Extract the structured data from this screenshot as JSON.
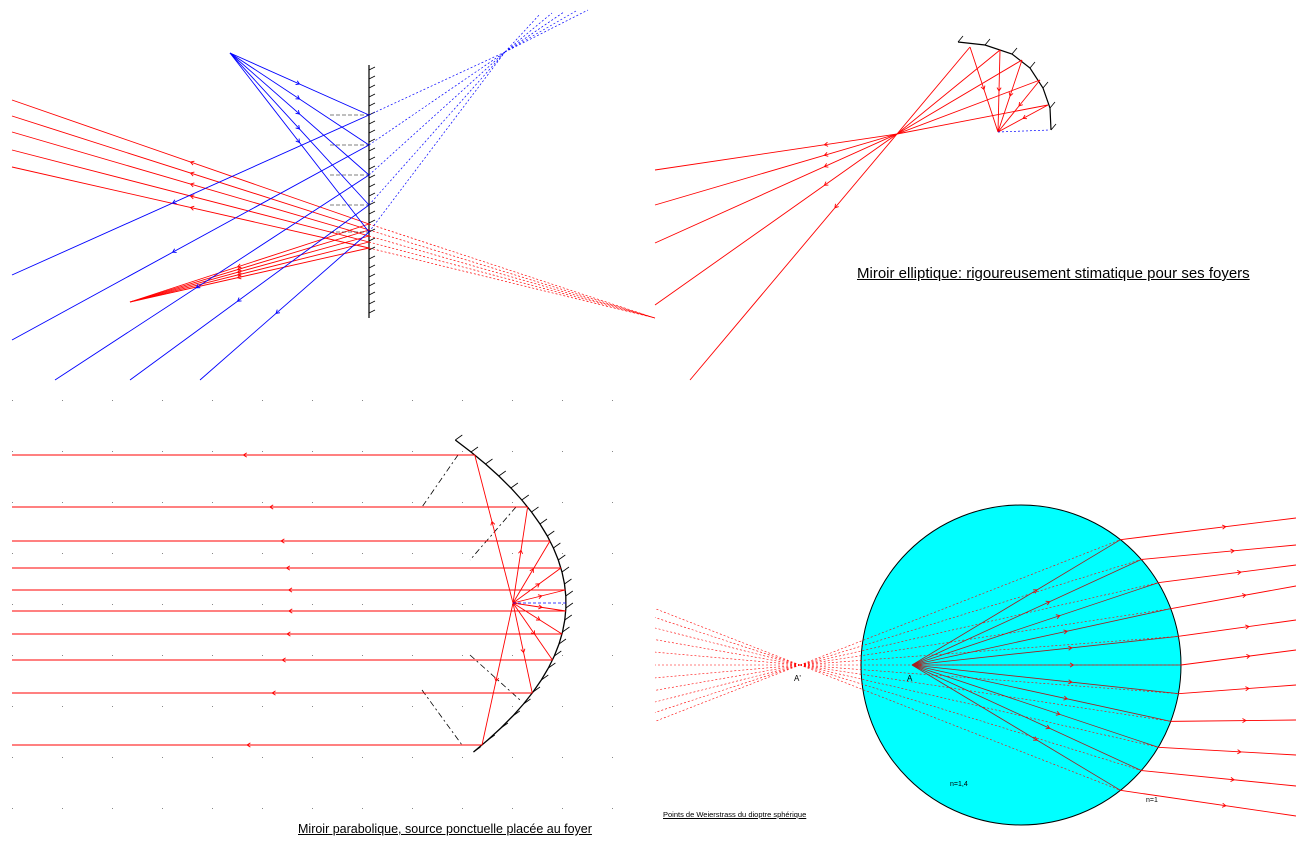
{
  "diagrams": {
    "plane_mirror": {
      "ray_color": "#ff0000",
      "second_ray_color": "#0000ff"
    },
    "elliptic_mirror": {
      "caption": "Miroir elliptique: rigoureusement stimatique pour ses foyers",
      "ray_color": "#ff0000"
    },
    "parabolic_mirror": {
      "caption": "Miroir parabolique, source ponctuelle placée au foyer",
      "ray_color": "#ff0000"
    },
    "weierstrass": {
      "caption": "Points de Weierstrass du dioptre sphérique",
      "sphere_color": "#00ffff",
      "label_image": "A'",
      "label_object": "A",
      "label_index_inside": "n=1,4",
      "label_index_outside": "n=1"
    }
  }
}
